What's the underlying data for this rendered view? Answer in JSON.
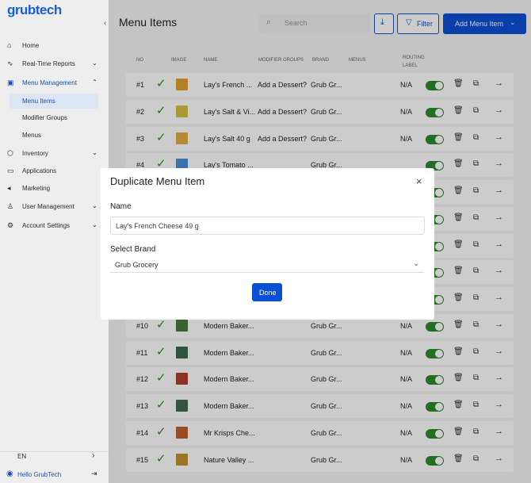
{
  "sidebar": {
    "logo": "grubtech",
    "nav": [
      "Home",
      "Real-Time Reports",
      "Menu Management",
      "Menu Items",
      "Modifier Groups",
      "Menus",
      "Inventory",
      "Applications",
      "Marketing",
      "User Management",
      "Account Settings"
    ],
    "language": "EN",
    "user": "Hello GrubTech"
  },
  "header": {
    "title": "Menu Items",
    "search": "Search",
    "filter": "Filter",
    "add": "Add Menu Item"
  },
  "table": {
    "columns": [
      "NO",
      "IMAGE",
      "NAME",
      "MODIFIER GROUPS",
      "BRAND",
      "MENUS",
      "ROUTING LABEL"
    ],
    "rows": [
      {
        "no": "#1",
        "name": "Lay's French ...",
        "modifier": "Add a Dessert?",
        "brand": "Grub Gr...",
        "routing": "N/A"
      },
      {
        "no": "#2",
        "name": "Lay's Salt & Vi...",
        "modifier": "Add a Dessert?",
        "brand": "Grub Gr...",
        "routing": "N/A"
      },
      {
        "no": "#3",
        "name": "Lay's Salt 40 g",
        "modifier": "Add a Dessert?",
        "brand": "Grub Gr...",
        "routing": "N/A"
      },
      {
        "no": "#4",
        "name": "Lay's Tomato ...",
        "brand": "Grub Gr..."
      },
      {},
      {},
      {},
      {},
      {},
      {
        "no": "#10",
        "name": "Modern Baker...",
        "brand": "Grub Gr...",
        "routing": "N/A"
      },
      {
        "no": "#11",
        "name": "Modern Baker...",
        "brand": "Grub Gr...",
        "routing": "N/A"
      },
      {
        "no": "#12",
        "name": "Modern Baker...",
        "brand": "Grub Gr...",
        "routing": "N/A"
      },
      {
        "no": "#13",
        "name": "Modern Baker...",
        "brand": "Grub Gr...",
        "routing": "N/A"
      },
      {
        "no": "#14",
        "name": "Mr Krisps Che...",
        "brand": "Grub Gr...",
        "routing": "N/A"
      },
      {
        "no": "#15",
        "name": "Nature Valley ...",
        "brand": "Grub Gr...",
        "routing": "N/A"
      }
    ]
  },
  "modal": {
    "title": "Duplicate Menu Item",
    "name_label": "Name",
    "name_value": "Lay's French Cheese 49 g",
    "brand_label": "Select Brand",
    "brand_value": "Grub Grocery",
    "done": "Done"
  }
}
